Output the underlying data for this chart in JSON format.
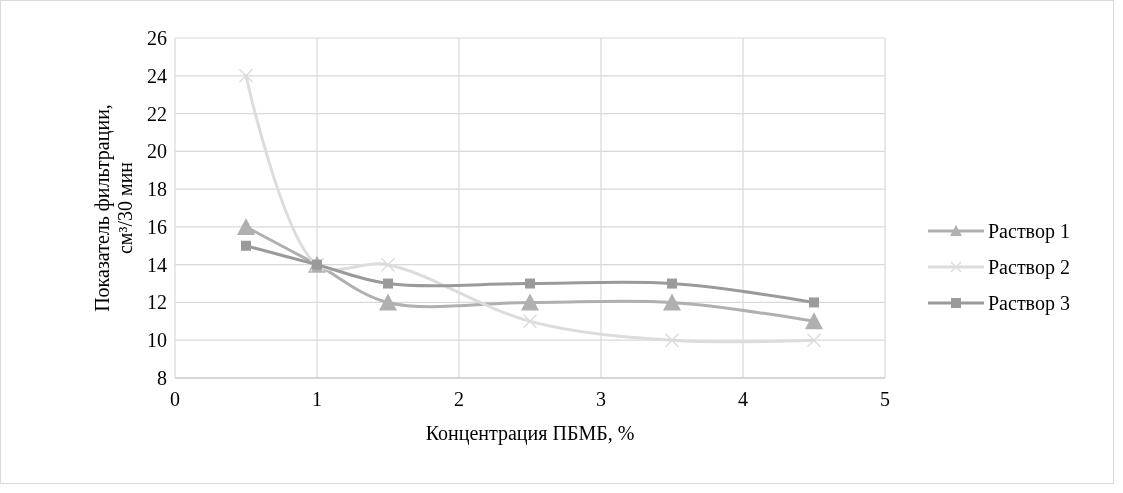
{
  "chart_data": {
    "type": "line",
    "xlabel": "Концентрация ПБМБ, %",
    "ylabel": "Показатель фильтрации, см³/30 мин",
    "x": [
      0.5,
      1,
      1.5,
      2.5,
      3.5,
      4.5
    ],
    "series": [
      {
        "name": "Раствор 1",
        "color": "#b0b0b0",
        "marker": "triangle",
        "values": [
          16,
          14,
          12,
          12,
          12,
          11
        ]
      },
      {
        "name": "Раствор 2",
        "color": "#dcdcdc",
        "marker": "cross",
        "values": [
          24,
          14,
          14,
          11,
          10,
          10
        ]
      },
      {
        "name": "Раствор 3",
        "color": "#9a9a9a",
        "marker": "square",
        "values": [
          15,
          14,
          13,
          13,
          13,
          12
        ]
      }
    ],
    "xlim": [
      0,
      5
    ],
    "xticks": [
      0,
      1,
      2,
      3,
      4,
      5
    ],
    "ylim": [
      8,
      26
    ],
    "yticks": [
      8,
      10,
      12,
      14,
      16,
      18,
      20,
      22,
      24,
      26
    ],
    "grid": true,
    "legend": "right",
    "line_style": "solid"
  }
}
